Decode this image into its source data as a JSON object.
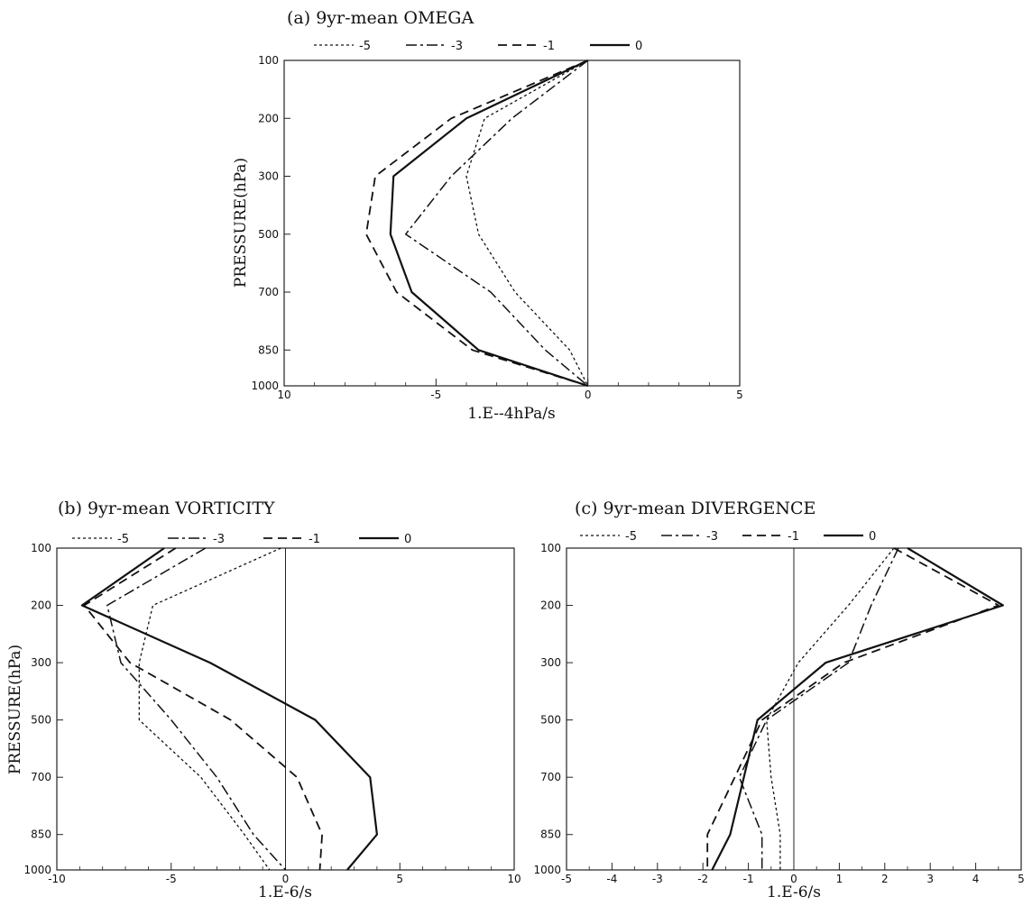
{
  "chart_data": [
    {
      "type": "line",
      "title": "(a) 9yr-mean OMEGA",
      "xlabel": "1.E--4hPa/s",
      "ylabel": "PRESSURE(hPa)",
      "xlim": [
        -10,
        5
      ],
      "x_ticks": [
        "10",
        "-5",
        "0",
        "5"
      ],
      "y_levels": [
        100,
        200,
        300,
        500,
        700,
        850,
        1000
      ],
      "series": [
        {
          "name": "-5",
          "style": "dotted",
          "values": [
            0,
            -3.4,
            -4.0,
            -3.6,
            -2.4,
            -0.6,
            0
          ]
        },
        {
          "name": "-3",
          "style": "dashdot",
          "values": [
            0,
            -2.5,
            -4.5,
            -6.0,
            -3.2,
            -1.4,
            0
          ]
        },
        {
          "name": "-1",
          "style": "dashed",
          "values": [
            0,
            -4.5,
            -7.0,
            -7.3,
            -6.3,
            -3.8,
            0
          ]
        },
        {
          "name": "0",
          "style": "solid",
          "values": [
            0,
            -4.0,
            -6.4,
            -6.5,
            -5.8,
            -3.6,
            0
          ]
        }
      ]
    },
    {
      "type": "line",
      "title": "(b) 9yr-mean VORTICITY",
      "xlabel": "1.E-6/s",
      "ylabel": "PRESSURE(hPa)",
      "xlim": [
        -10,
        10
      ],
      "x_ticks": [
        "-10",
        "-5",
        "0",
        "5",
        "10"
      ],
      "y_levels": [
        100,
        200,
        300,
        500,
        700,
        850,
        1000
      ],
      "series": [
        {
          "name": "-5",
          "style": "dotted",
          "values": [
            -0.2,
            -5.8,
            -6.4,
            -6.4,
            -3.7,
            -1.8,
            -0.7
          ]
        },
        {
          "name": "-3",
          "style": "dashdot",
          "values": [
            -3.5,
            -7.8,
            -7.2,
            -5.0,
            -3.0,
            -1.4,
            0
          ]
        },
        {
          "name": "-1",
          "style": "dashed",
          "values": [
            -4.8,
            -8.8,
            -6.8,
            -2.4,
            0.5,
            1.6,
            1.5
          ]
        },
        {
          "name": "0",
          "style": "solid",
          "values": [
            -5.3,
            -8.9,
            -3.3,
            1.3,
            3.7,
            4.0,
            2.7
          ]
        }
      ]
    },
    {
      "type": "line",
      "title": "(c) 9yr-mean DIVERGENCE",
      "xlabel": "1.E-6/s",
      "ylabel": "",
      "xlim": [
        -5,
        5
      ],
      "x_ticks": [
        "-5",
        "-4",
        "-3",
        "-2",
        "-1",
        "0",
        "1",
        "2",
        "3",
        "4",
        "5"
      ],
      "y_levels": [
        100,
        200,
        300,
        500,
        700,
        850,
        1000
      ],
      "series": [
        {
          "name": "-5",
          "style": "dotted",
          "values": [
            2.2,
            1.2,
            0.1,
            -0.6,
            -0.5,
            -0.3,
            -0.3
          ]
        },
        {
          "name": "-3",
          "style": "dashdot",
          "values": [
            2.3,
            1.7,
            1.2,
            -0.6,
            -1.2,
            -0.7,
            -0.7
          ]
        },
        {
          "name": "-1",
          "style": "dashed",
          "values": [
            2.2,
            4.5,
            1.1,
            -0.7,
            -1.3,
            -1.9,
            -1.9
          ]
        },
        {
          "name": "0",
          "style": "solid",
          "values": [
            2.5,
            4.6,
            0.7,
            -0.8,
            -1.1,
            -1.4,
            -1.8
          ]
        }
      ]
    }
  ]
}
